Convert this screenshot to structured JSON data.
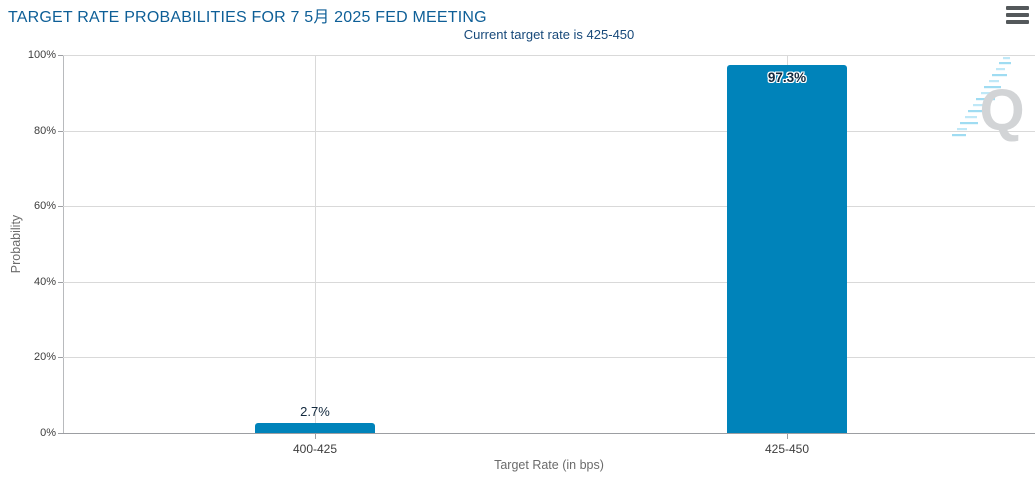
{
  "header": {
    "title": "TARGET RATE PROBABILITIES FOR 7 5月 2025 FED MEETING",
    "menu_icon": "hamburger-menu-icon"
  },
  "chart_data": {
    "type": "bar",
    "title": "TARGET RATE PROBABILITIES FOR 7 5月 2025 FED MEETING",
    "subtitle": "Current target rate is 425-450",
    "categories": [
      "400-425",
      "425-450"
    ],
    "values": [
      2.7,
      97.3
    ],
    "value_labels": [
      "2.7%",
      "97.3%"
    ],
    "xlabel": "Target Rate (in bps)",
    "ylabel": "Probability",
    "ylim": [
      0,
      100
    ],
    "y_ticks": [
      "0%",
      "20%",
      "40%",
      "60%",
      "80%",
      "100%"
    ],
    "grid": true,
    "legend": false,
    "bar_color": "#0083ba"
  },
  "watermark": {
    "label": "Q"
  },
  "colors": {
    "title": "#0e5f97",
    "subtitle": "#17497a",
    "bar": "#0083ba",
    "axis_text": "#3d3d3d",
    "axis_title_text": "#6b6b6b",
    "gridline": "#d9d9d9",
    "baseline": "#9c9ea2",
    "tick": "#9c9ea2",
    "axis_line": "#b8babd",
    "value_label": "#12293e",
    "menu_icon": "#54585b",
    "watermark_gray": "#d2d4d6",
    "watermark_blue": "#9fdcf2"
  }
}
